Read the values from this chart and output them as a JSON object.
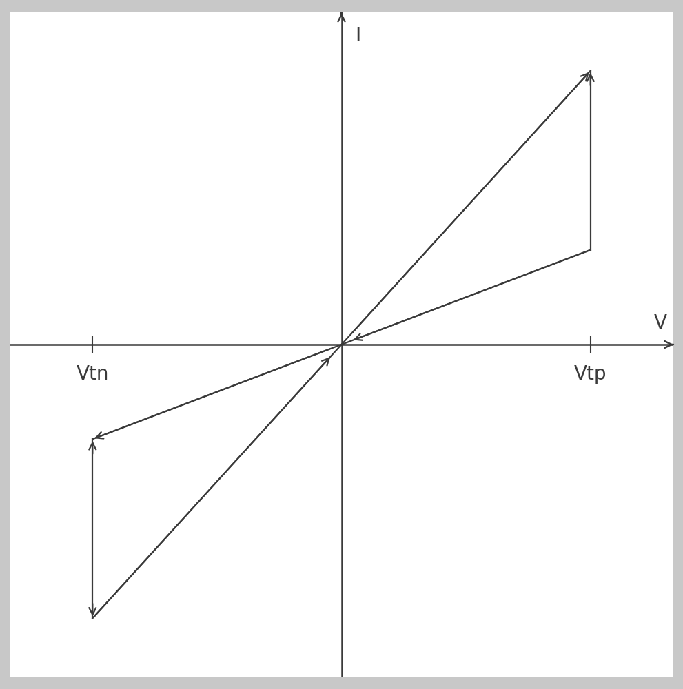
{
  "background_color": "#ffffff",
  "border_color": "#b0b0b0",
  "axis_color": "#4a4a4a",
  "line_color": "#3a3a3a",
  "xlim": [
    -10,
    10
  ],
  "ylim": [
    -10,
    10
  ],
  "label_I": "I",
  "label_V": "V",
  "label_Vtn": "Vtn",
  "label_Vtp": "Vtp",
  "label_fontsize": 20,
  "line_width": 1.6,
  "vtp_x": 7.5,
  "vtn_x": -7.5,
  "steep_slope": 1.1,
  "shallow_slope": 0.38,
  "figsize": [
    9.91,
    10.0
  ],
  "dpi": 100
}
